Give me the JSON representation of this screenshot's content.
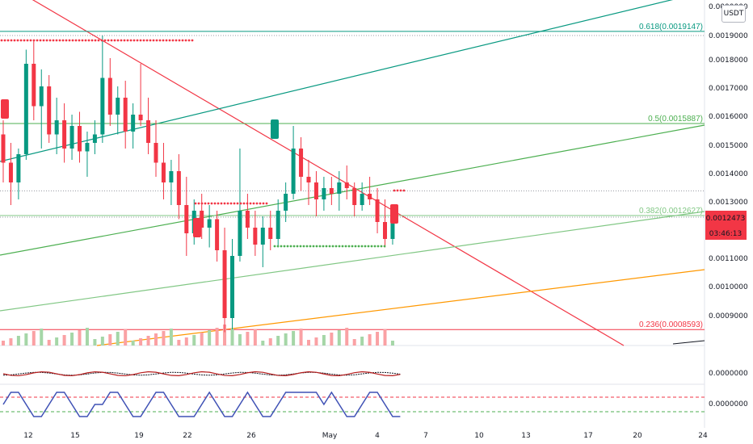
{
  "chart_data": {
    "type": "candlestick",
    "currency": "USDT",
    "current_price": "0.0012473",
    "countdown": "03:46:13",
    "y_ticks": [
      "0.0000000",
      "0.0019000",
      "0.0018000",
      "0.0017000",
      "0.0016000",
      "0.0015000",
      "0.0014000",
      "0.0013000",
      "0.0011000",
      "0.0010000",
      "0.0009000"
    ],
    "x_ticks": [
      "12",
      "15",
      "19",
      "22",
      "26",
      "May",
      "4",
      "7",
      "10",
      "13",
      "17",
      "20",
      "24"
    ],
    "fib_levels": [
      {
        "label": "0.618(0.0019147)",
        "value": 0.0019147,
        "color": "#089981"
      },
      {
        "label": "0.5(0.0015887)",
        "value": 0.0015887,
        "color": "#4caf50"
      },
      {
        "label": "0.382(0.0012627)",
        "value": 0.0012627,
        "color": "#81c784"
      },
      {
        "label": "0.236(0.0008593)",
        "value": 0.0008593,
        "color": "#f23645"
      }
    ],
    "indicator_ticks": [
      "0.0000000",
      "0.0000000"
    ],
    "candles": [
      [
        0.00155,
        0.0016,
        0.00138,
        0.00145
      ],
      [
        0.00145,
        0.00152,
        0.0013,
        0.00138
      ],
      [
        0.00138,
        0.0015,
        0.00132,
        0.00148
      ],
      [
        0.00148,
        0.00185,
        0.00146,
        0.0018
      ],
      [
        0.0018,
        0.00188,
        0.0016,
        0.00165
      ],
      [
        0.00165,
        0.00178,
        0.0015,
        0.00172
      ],
      [
        0.00172,
        0.00176,
        0.00152,
        0.00155
      ],
      [
        0.00155,
        0.00168,
        0.00148,
        0.0016
      ],
      [
        0.0016,
        0.00166,
        0.00145,
        0.0015
      ],
      [
        0.0015,
        0.00162,
        0.00146,
        0.00158
      ],
      [
        0.00158,
        0.00163,
        0.00145,
        0.00149
      ],
      [
        0.00149,
        0.00156,
        0.0014,
        0.00152
      ],
      [
        0.00152,
        0.0016,
        0.00148,
        0.00155
      ],
      [
        0.00155,
        0.0019,
        0.00152,
        0.00175
      ],
      [
        0.00175,
        0.00182,
        0.00158,
        0.00162
      ],
      [
        0.00162,
        0.00172,
        0.00155,
        0.00168
      ],
      [
        0.00168,
        0.00174,
        0.0015,
        0.00156
      ],
      [
        0.00156,
        0.00166,
        0.0015,
        0.00162
      ],
      [
        0.00162,
        0.0018,
        0.00158,
        0.0016
      ],
      [
        0.0016,
        0.00168,
        0.00148,
        0.00152
      ],
      [
        0.00152,
        0.0016,
        0.0014,
        0.00145
      ],
      [
        0.00145,
        0.00152,
        0.00132,
        0.00138
      ],
      [
        0.00138,
        0.00146,
        0.0013,
        0.00142
      ],
      [
        0.00142,
        0.00148,
        0.00125,
        0.0013
      ],
      [
        0.0013,
        0.0014,
        0.00112,
        0.0012
      ],
      [
        0.0012,
        0.00132,
        0.00116,
        0.00128
      ],
      [
        0.00128,
        0.00134,
        0.00118,
        0.00122
      ],
      [
        0.00122,
        0.0013,
        0.00115,
        0.00125
      ],
      [
        0.00125,
        0.00128,
        0.0011,
        0.00114
      ],
      [
        0.00114,
        0.00122,
        0.00085,
        0.0009
      ],
      [
        0.0009,
        0.00118,
        0.00086,
        0.00112
      ],
      [
        0.00112,
        0.0015,
        0.0011,
        0.00128
      ],
      [
        0.00128,
        0.00134,
        0.00118,
        0.00122
      ],
      [
        0.00122,
        0.00128,
        0.00112,
        0.00116
      ],
      [
        0.00116,
        0.00126,
        0.00108,
        0.00122
      ],
      [
        0.00122,
        0.00128,
        0.00114,
        0.00118
      ],
      [
        0.00118,
        0.00132,
        0.00115,
        0.00128
      ],
      [
        0.00128,
        0.00138,
        0.00124,
        0.00134
      ],
      [
        0.00134,
        0.00158,
        0.00132,
        0.0015
      ],
      [
        0.0015,
        0.00154,
        0.00135,
        0.0014
      ],
      [
        0.0014,
        0.00146,
        0.0013,
        0.00138
      ],
      [
        0.00138,
        0.00142,
        0.00126,
        0.00132
      ],
      [
        0.00132,
        0.0014,
        0.00128,
        0.00136
      ],
      [
        0.00136,
        0.0014,
        0.0013,
        0.00134
      ],
      [
        0.00134,
        0.00142,
        0.00128,
        0.00138
      ],
      [
        0.00138,
        0.00144,
        0.00132,
        0.00136
      ],
      [
        0.00136,
        0.00138,
        0.00126,
        0.0013
      ],
      [
        0.0013,
        0.00138,
        0.00128,
        0.00134
      ],
      [
        0.00134,
        0.0014,
        0.0013,
        0.00132
      ],
      [
        0.00132,
        0.00136,
        0.0012,
        0.00124
      ],
      [
        0.00124,
        0.00132,
        0.00115,
        0.00118
      ],
      [
        0.00118,
        0.00128,
        0.00116,
        0.00126
      ]
    ]
  }
}
